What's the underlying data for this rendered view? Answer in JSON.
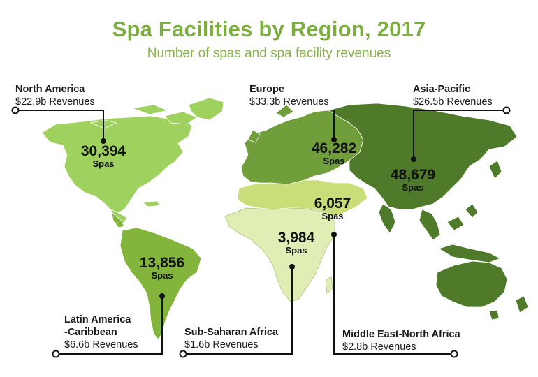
{
  "title": "Spa Facilities by Region, 2017",
  "subtitle": "Number of spas and spa facility revenues",
  "colors": {
    "title": "#7cae3f",
    "north_america": "#9fd15f",
    "latin_america": "#83b53c",
    "europe": "#6f9e3b",
    "asia_pacific": "#4f7a2a",
    "middle_east": "#c9de79",
    "sub_saharan": "#e0edb5",
    "line": "#111111"
  },
  "regions": [
    {
      "id": "north-america",
      "name": "North America",
      "revenue": "$22.9b Revenues",
      "spas": "30,394",
      "unit": "Spas"
    },
    {
      "id": "europe",
      "name": "Europe",
      "revenue": "$33.3b Revenues",
      "spas": "46,282",
      "unit": "Spas"
    },
    {
      "id": "asia-pacific",
      "name": "Asia-Pacific",
      "revenue": "$26.5b Revenues",
      "spas": "48,679",
      "unit": "Spas"
    },
    {
      "id": "latin-america",
      "name_line1": "Latin America",
      "name_line2": "-Caribbean",
      "revenue": "$6.6b Revenues",
      "spas": "13,856",
      "unit": "Spas"
    },
    {
      "id": "sub-saharan-africa",
      "name": "Sub-Saharan Africa",
      "revenue": "$1.6b Revenues",
      "spas": "3,984",
      "unit": "Spas"
    },
    {
      "id": "middle-east",
      "name": "Middle East-North Africa",
      "revenue": "$2.8b Revenues",
      "spas": "6,057",
      "unit": "Spas"
    }
  ]
}
